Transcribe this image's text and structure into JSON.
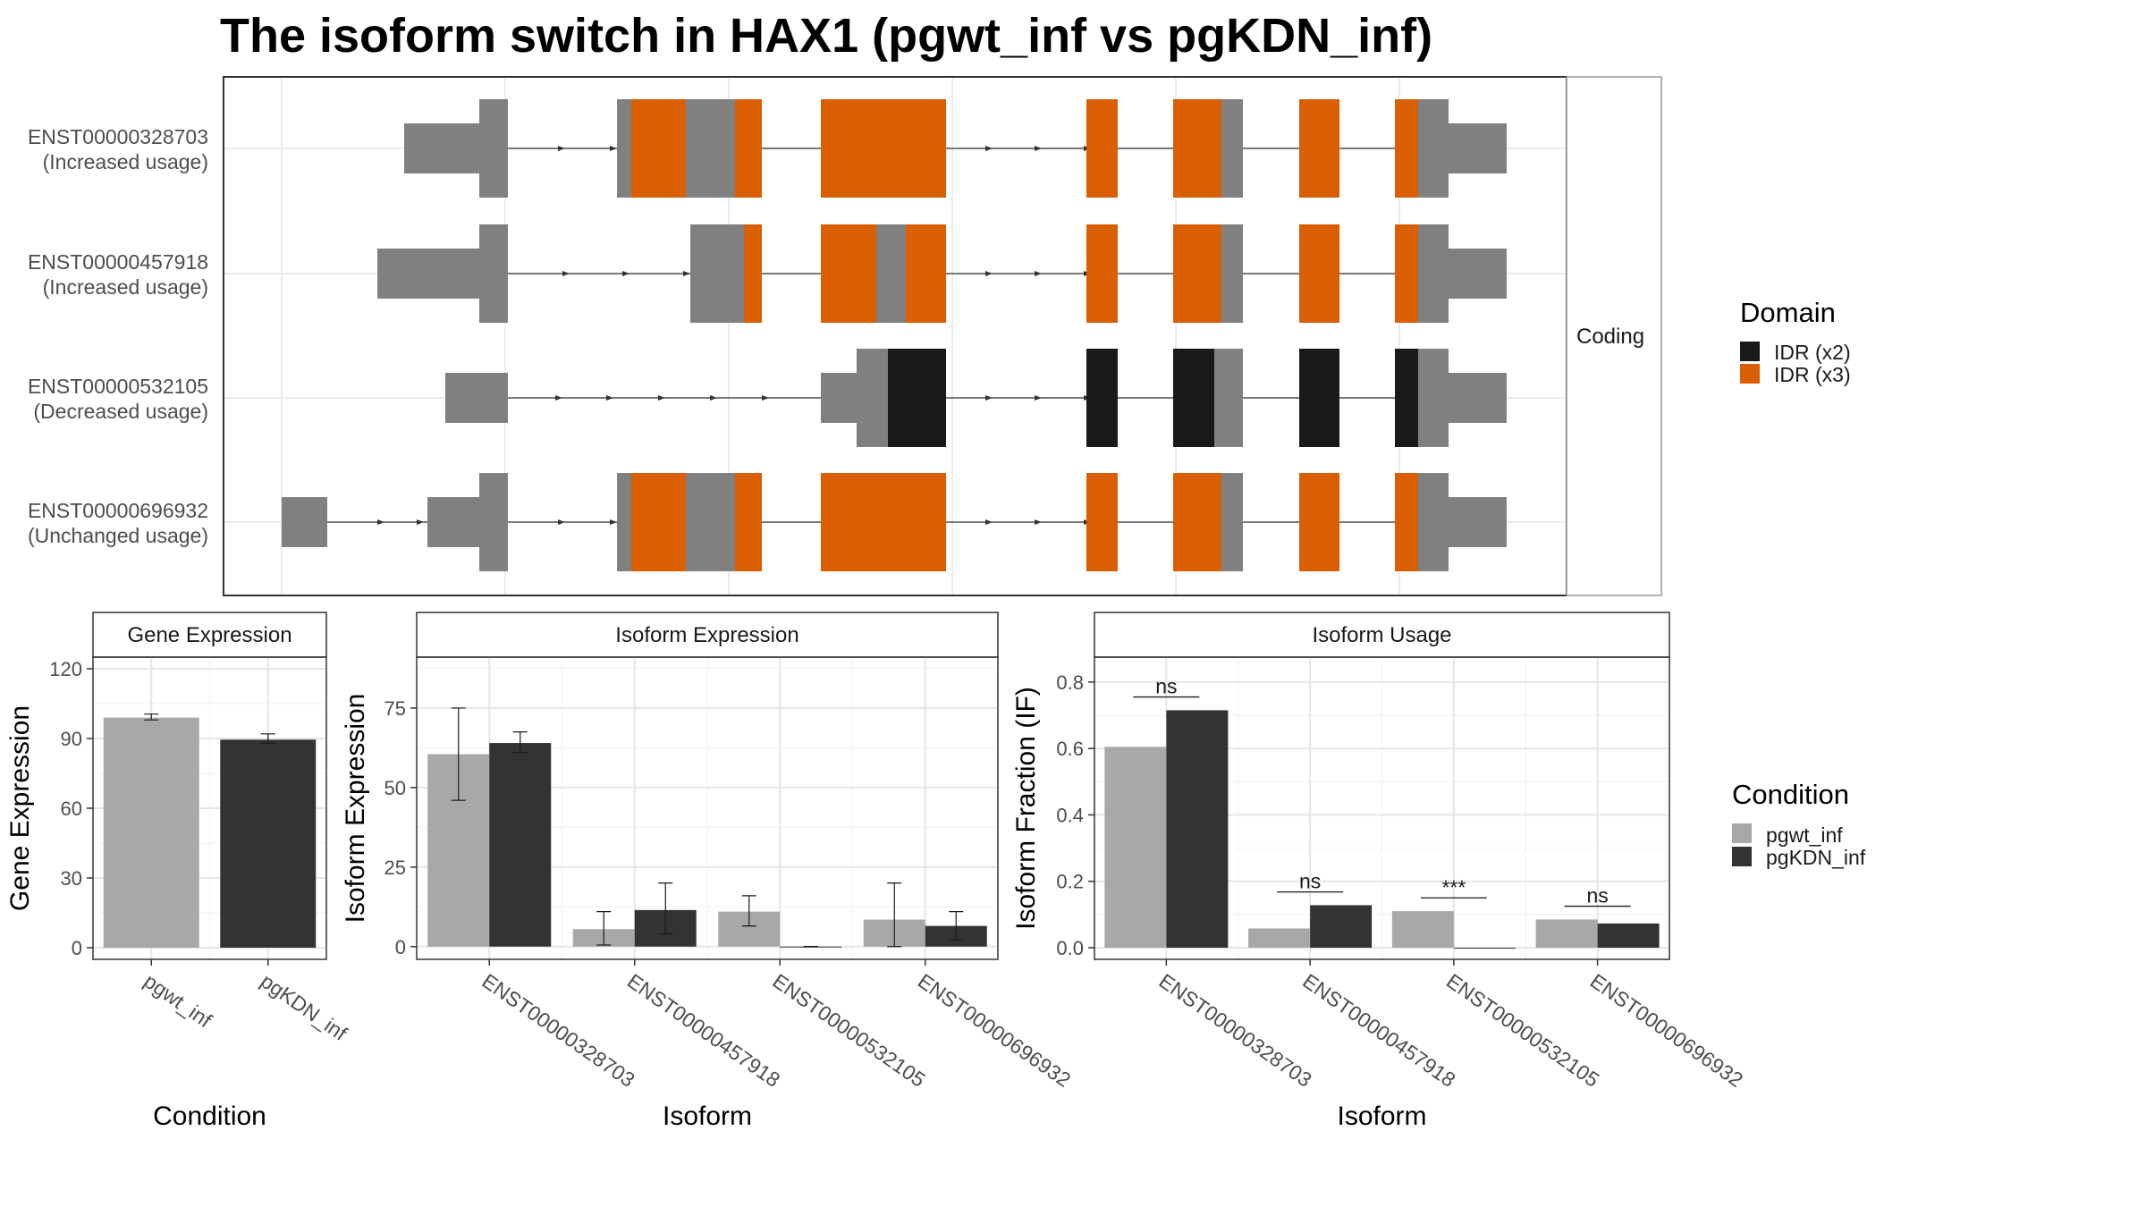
{
  "title": "The isoform switch in HAX1 (pgwt_inf vs pgKDN_inf)",
  "transcript_panel": {
    "strip_label": "Coding",
    "rows": [
      {
        "id": "ENST00000328703",
        "status": "(Increased usage)"
      },
      {
        "id": "ENST00000457918",
        "status": "(Increased usage)"
      },
      {
        "id": "ENST00000532105",
        "status": "(Decreased usage)"
      },
      {
        "id": "ENST00000696932",
        "status": "(Unchanged usage)"
      }
    ]
  },
  "domain_legend": {
    "title": "Domain",
    "entries": [
      {
        "label": "IDR (x2)",
        "color": "#1a1a1a"
      },
      {
        "label": "IDR (x3)",
        "color": "#d95f02"
      }
    ]
  },
  "condition_legend": {
    "title": "Condition",
    "entries": [
      {
        "label": "pgwt_inf",
        "color": "#a8a8a8"
      },
      {
        "label": "pgKDN_inf",
        "color": "#333333"
      }
    ]
  },
  "colors": {
    "utr": "#808080",
    "idr2": "#1a1a1a",
    "idr3": "#d95f02",
    "wt": "#a8a8a8",
    "kdn": "#333333"
  },
  "chart_data": [
    {
      "type": "bar",
      "strip": "Gene Expression",
      "xlabel": "Condition",
      "ylabel": "Gene Expression",
      "categories": [
        "pgwt_inf",
        "pgKDN_inf"
      ],
      "values": [
        99,
        89.5
      ],
      "errors": [
        [
          98,
          100.5
        ],
        [
          88,
          92
        ]
      ],
      "yticks": [
        0,
        30,
        60,
        90,
        120
      ],
      "ylim": [
        -5,
        125
      ]
    },
    {
      "type": "bar",
      "strip": "Isoform Expression",
      "xlabel": "Isoform",
      "ylabel": "Isoform Expression",
      "categories": [
        "ENST00000328703",
        "ENST00000457918",
        "ENST00000532105",
        "ENST00000696932"
      ],
      "series": [
        {
          "name": "pgwt_inf",
          "values": [
            60.5,
            5.5,
            11,
            8.5
          ],
          "errors": [
            [
              46,
              75
            ],
            [
              0.5,
              11
            ],
            [
              6.5,
              16
            ],
            [
              0,
              20
            ]
          ]
        },
        {
          "name": "pgKDN_inf",
          "values": [
            64,
            11.5,
            0,
            6.5
          ],
          "errors": [
            [
              61,
              67.5
            ],
            [
              4,
              20
            ],
            [
              0,
              0
            ],
            [
              2,
              11
            ]
          ]
        }
      ],
      "yticks": [
        0,
        25,
        50,
        75
      ],
      "ylim": [
        -4,
        91
      ]
    },
    {
      "type": "bar",
      "strip": "Isoform Usage",
      "xlabel": "Isoform",
      "ylabel": "Isoform Fraction (IF)",
      "categories": [
        "ENST00000328703",
        "ENST00000457918",
        "ENST00000532105",
        "ENST00000696932"
      ],
      "series": [
        {
          "name": "pgwt_inf",
          "values": [
            0.605,
            0.058,
            0.11,
            0.085
          ]
        },
        {
          "name": "pgKDN_inf",
          "values": [
            0.715,
            0.128,
            0,
            0.073
          ]
        }
      ],
      "significance": [
        "ns",
        "ns",
        "***",
        "ns"
      ],
      "significance_levels": [
        0.755,
        0.168,
        0.15,
        0.125
      ],
      "yticks": [
        0.0,
        0.2,
        0.4,
        0.6,
        0.8
      ],
      "ylim": [
        -0.035,
        0.875
      ]
    }
  ]
}
